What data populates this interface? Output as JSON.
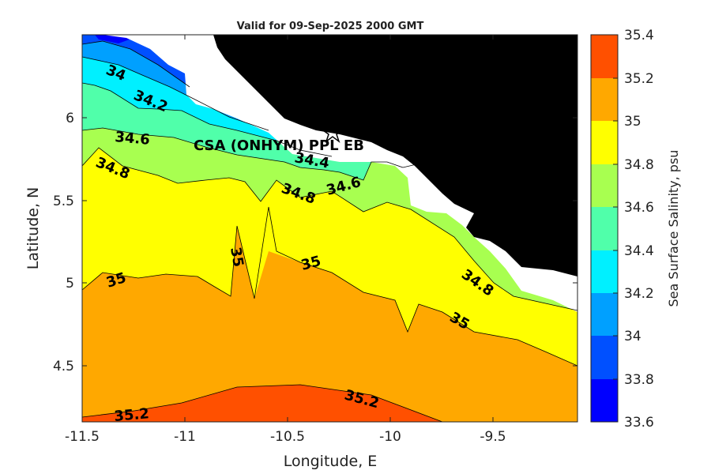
{
  "title": "Valid for 09-Sep-2025 2000 GMT",
  "xlabel": "Longitude, E",
  "ylabel": "Latitude, N",
  "x_ticks": [
    "-11.5",
    "-11",
    "-10.5",
    "-10",
    "-9.5"
  ],
  "y_ticks": [
    "6",
    "5.5",
    "5",
    "4.5"
  ],
  "colorbar": {
    "label": "Sea Surface Salinity, psu",
    "ticks": [
      "35.4",
      "35.2",
      "35",
      "34.8",
      "34.6",
      "34.4",
      "34.2",
      "34",
      "33.8",
      "33.6"
    ],
    "bands": [
      {
        "range": "33.6-33.8",
        "color": "#0000ff"
      },
      {
        "range": "33.8-34.0",
        "color": "#0050ff"
      },
      {
        "range": "34.0-34.2",
        "color": "#00a0ff"
      },
      {
        "range": "34.2-34.4",
        "color": "#00f0ff"
      },
      {
        "range": "34.4-34.6",
        "color": "#50ffaa"
      },
      {
        "range": "34.6-34.8",
        "color": "#a8ff50"
      },
      {
        "range": "34.8-35.0",
        "color": "#ffff00"
      },
      {
        "range": "35.0-35.2",
        "color": "#ffa800"
      },
      {
        "range": "35.2-35.4",
        "color": "#ff5000"
      }
    ]
  },
  "contour_labels": [
    "34",
    "34.2",
    "34.6",
    "34.4",
    "34.8",
    "34.8",
    "34.6",
    "35",
    "35",
    "35",
    "34.8",
    "35",
    "35.2",
    "35.2"
  ],
  "station": {
    "label": "CSA (ONHYM) PPL EB",
    "marker": "star-icon"
  },
  "colors": {
    "land": "#000000",
    "nodata": "#ffffff",
    "contour_line": "#000000"
  }
}
